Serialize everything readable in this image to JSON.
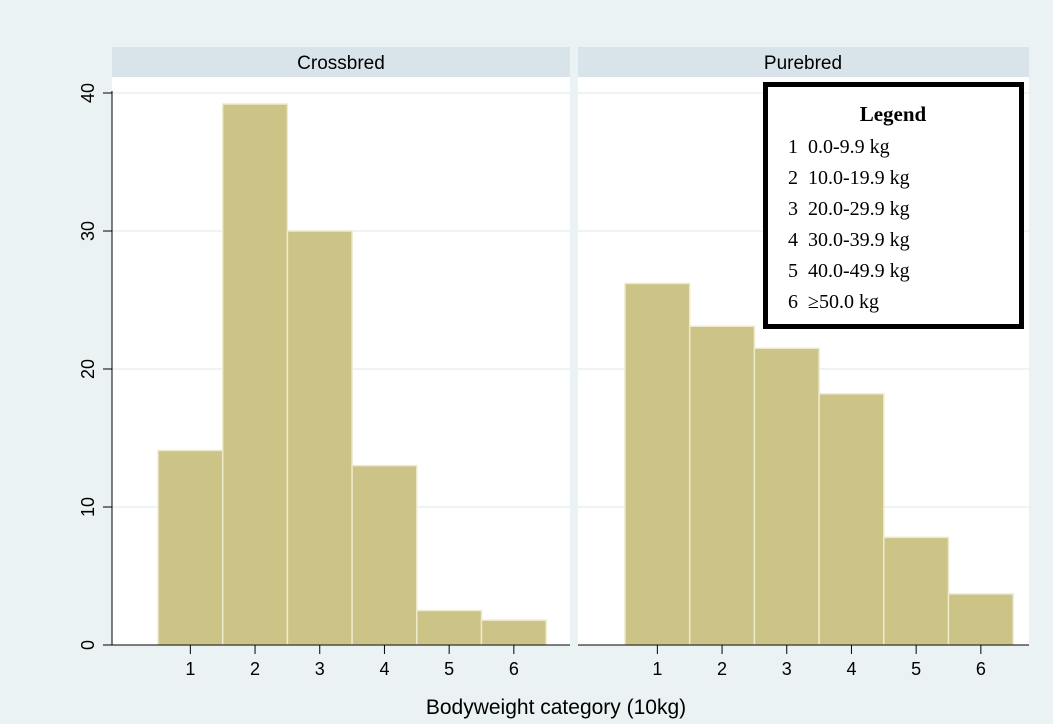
{
  "chart_data": {
    "type": "bar",
    "categories": [
      "1",
      "2",
      "3",
      "4",
      "5",
      "6"
    ],
    "ylim": [
      0,
      40
    ],
    "yticks": [
      "0",
      "10",
      "20",
      "30",
      "40"
    ],
    "xlabel": "Bodyweight category (10kg)",
    "ylabel": "",
    "grid": true,
    "panels": [
      {
        "title": "Crossbred",
        "values": [
          14.1,
          39.2,
          30.0,
          13.0,
          2.5,
          1.8
        ]
      },
      {
        "title": "Purebred",
        "values": [
          26.2,
          23.1,
          21.5,
          18.2,
          7.8,
          3.7
        ]
      }
    ],
    "legend": {
      "title": "Legend",
      "placement": "top-right of Purebred panel",
      "items": [
        "1  0.0-9.9 kg",
        "2  10.0-19.9 kg",
        "3  20.0-29.9 kg",
        "4  30.0-39.9 kg",
        "5  40.0-49.9 kg",
        "6  ≥50.0 kg"
      ]
    },
    "colors": {
      "bar_fill": "#ccc387",
      "bar_stroke": "#eeeacc",
      "panel_header": "#d8e4ea",
      "background": "#eaf2f3",
      "plot_area": "#ffffff",
      "grid": "#e4eced"
    }
  }
}
